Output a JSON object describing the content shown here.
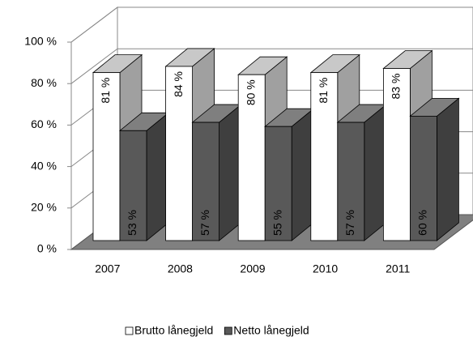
{
  "chart_data": {
    "type": "bar3d",
    "categories": [
      "2007",
      "2008",
      "2009",
      "2010",
      "2011"
    ],
    "series": [
      {
        "name": "Brutto lånegjeld",
        "color": "#ffffff",
        "values": [
          81,
          84,
          80,
          81,
          83
        ],
        "value_labels": [
          "81 %",
          "84 %",
          "80 %",
          "81 %",
          "83 %"
        ]
      },
      {
        "name": "Netto lånegjeld",
        "color": "#595959",
        "values": [
          53,
          57,
          55,
          57,
          60
        ],
        "value_labels": [
          "53 %",
          "57 %",
          "55 %",
          "57 %",
          "60 %"
        ]
      }
    ],
    "ylim": [
      0,
      100
    ],
    "yticks": [
      {
        "value": 0,
        "label": "0 %"
      },
      {
        "value": 20,
        "label": "20 %"
      },
      {
        "value": 40,
        "label": "40 %"
      },
      {
        "value": 60,
        "label": "60 %"
      },
      {
        "value": 80,
        "label": "80 %"
      },
      {
        "value": 100,
        "label": "100 %"
      }
    ],
    "grid": true,
    "legend": "bottom"
  }
}
